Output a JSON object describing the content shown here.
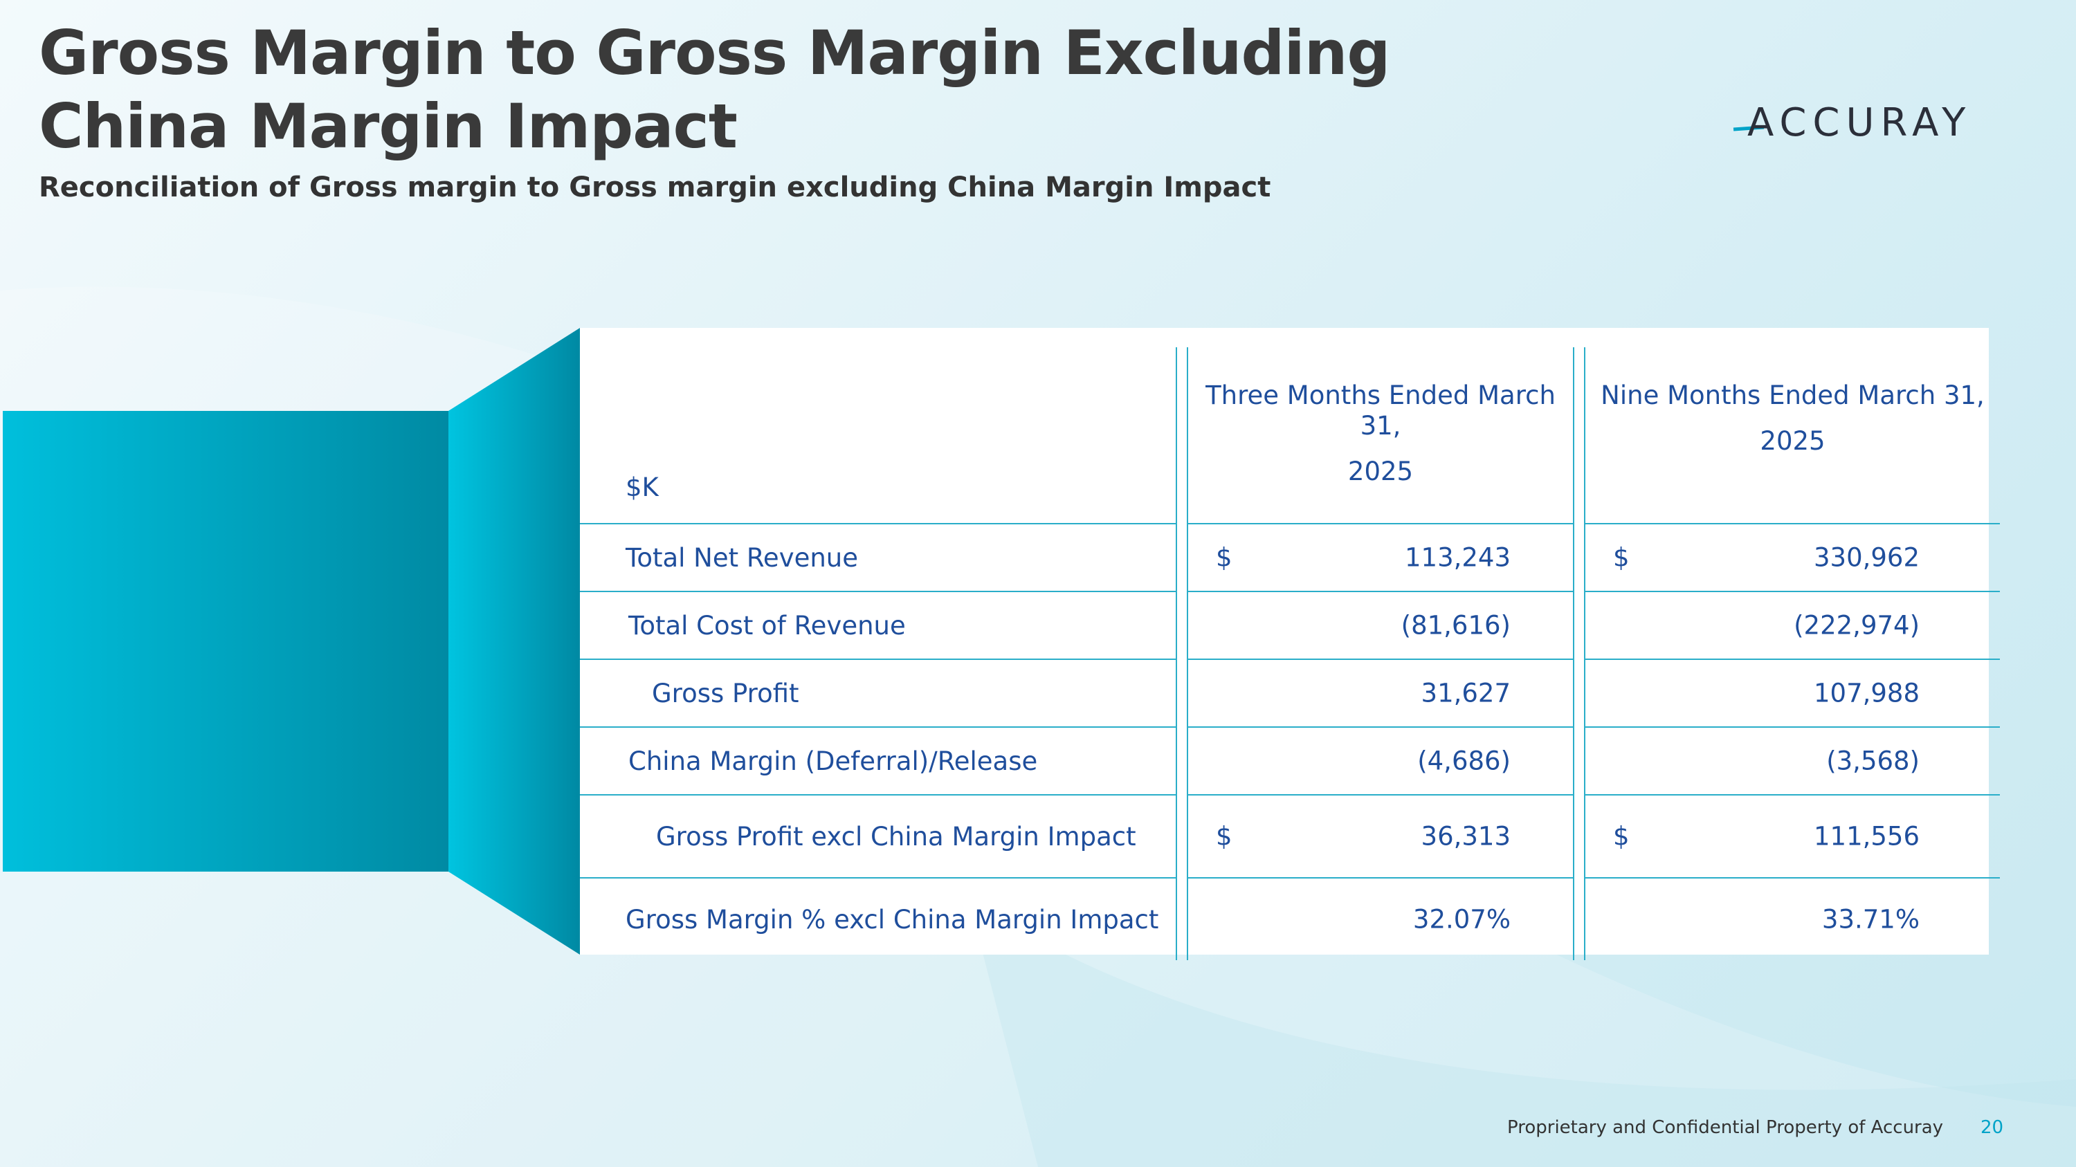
{
  "slide": {
    "title": "Gross Margin to Gross Margin Excluding China Margin Impact",
    "subtitle": "Reconciliation of Gross margin to Gross margin excluding China Margin Impact",
    "logo_text": "ACCURAY"
  },
  "table": {
    "unit_label": "$K",
    "columns": [
      {
        "period": "Three Months Ended March 31,",
        "year": "2025"
      },
      {
        "period": "Nine Months Ended March 31,",
        "year": "2025"
      }
    ],
    "rows": [
      {
        "label": "Total Net Revenue",
        "a_dollar": "$",
        "a": "113,243",
        "b_dollar": "$",
        "b": "330,962"
      },
      {
        "label": "Total Cost of Revenue",
        "a_dollar": "",
        "a": "(81,616)",
        "b_dollar": "",
        "b": "(222,974)"
      },
      {
        "label": "Gross Profit",
        "a_dollar": "",
        "a": "31,627",
        "b_dollar": "",
        "b": "107,988"
      },
      {
        "label": "China Margin (Deferral)/Release",
        "a_dollar": "",
        "a": "(4,686)",
        "b_dollar": "",
        "b": "(3,568)"
      },
      {
        "label": "Gross Profit excl China Margin Impact",
        "a_dollar": "$",
        "a": "36,313",
        "b_dollar": "$",
        "b": "111,556"
      },
      {
        "label": "Gross Margin % excl China Margin Impact",
        "a_dollar": "",
        "a": "32.07%",
        "b_dollar": "",
        "b": "33.71%"
      }
    ]
  },
  "footer": {
    "text": "Proprietary and Confidential Property of Accuray",
    "page_number": "20"
  },
  "colors": {
    "title": "#3a3a3a",
    "table_text": "#1f4e9c",
    "rule": "#2aaec9",
    "accent": "#00a3c8"
  }
}
